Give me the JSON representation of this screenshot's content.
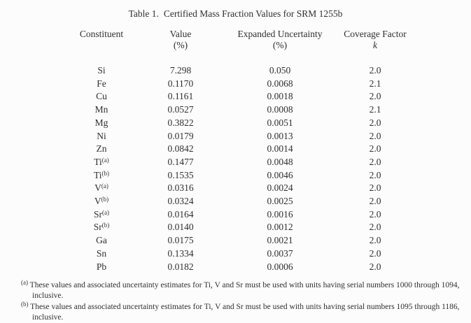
{
  "table": {
    "title_label": "Table 1.",
    "title_text": "Certified Mass Fraction Values for SRM 1255b",
    "columns": {
      "constituent": "Constituent",
      "value": "Value",
      "value_unit": "(%)",
      "uncertainty": "Expanded Uncertainty",
      "uncertainty_unit": "(%)",
      "coverage": "Coverage Factor",
      "coverage_symbol": "k"
    },
    "rows": [
      {
        "element": "Si",
        "sup": "",
        "value": "7.298",
        "uncertainty": "0.050",
        "k": "2.0"
      },
      {
        "element": "Fe",
        "sup": "",
        "value": "0.1170",
        "uncertainty": "0.0068",
        "k": "2.1"
      },
      {
        "element": "Cu",
        "sup": "",
        "value": "0.1161",
        "uncertainty": "0.0018",
        "k": "2.0"
      },
      {
        "element": "Mn",
        "sup": "",
        "value": "0.0527",
        "uncertainty": "0.0008",
        "k": "2.1"
      },
      {
        "element": "Mg",
        "sup": "",
        "value": "0.3822",
        "uncertainty": "0.0051",
        "k": "2.0"
      },
      {
        "element": "Ni",
        "sup": "",
        "value": "0.0179",
        "uncertainty": "0.0013",
        "k": "2.0"
      },
      {
        "element": "Zn",
        "sup": "",
        "value": "0.0842",
        "uncertainty": "0.0014",
        "k": "2.0"
      },
      {
        "element": "Ti",
        "sup": "(a)",
        "value": "0.1477",
        "uncertainty": "0.0048",
        "k": "2.0"
      },
      {
        "element": "Ti",
        "sup": "(b)",
        "value": "0.1535",
        "uncertainty": "0.0046",
        "k": "2.0"
      },
      {
        "element": "V",
        "sup": "(a)",
        "value": "0.0316",
        "uncertainty": "0.0024",
        "k": "2.0"
      },
      {
        "element": "V",
        "sup": "(b)",
        "value": "0.0324",
        "uncertainty": "0.0025",
        "k": "2.0"
      },
      {
        "element": "Sr",
        "sup": "(a)",
        "value": "0.0164",
        "uncertainty": "0.0016",
        "k": "2.0"
      },
      {
        "element": "Sr",
        "sup": "(b)",
        "value": "0.0140",
        "uncertainty": "0.0012",
        "k": "2.0"
      },
      {
        "element": "Ga",
        "sup": "",
        "value": "0.0175",
        "uncertainty": "0.0021",
        "k": "2.0"
      },
      {
        "element": "Sn",
        "sup": "",
        "value": "0.1334",
        "uncertainty": "0.0037",
        "k": "2.0"
      },
      {
        "element": "Pb",
        "sup": "",
        "value": "0.0182",
        "uncertainty": "0.0006",
        "k": "2.0"
      }
    ]
  },
  "footnotes": [
    {
      "marker": "(a)",
      "text": "These values and associated uncertainty estimates for Ti, V and Sr must be used with units having serial numbers 1000 through 1094, inclusive."
    },
    {
      "marker": "(b)",
      "text": "These values and associated uncertainty estimates for Ti, V and Sr must be used with units having serial numbers 1095 through 1186, inclusive."
    }
  ]
}
